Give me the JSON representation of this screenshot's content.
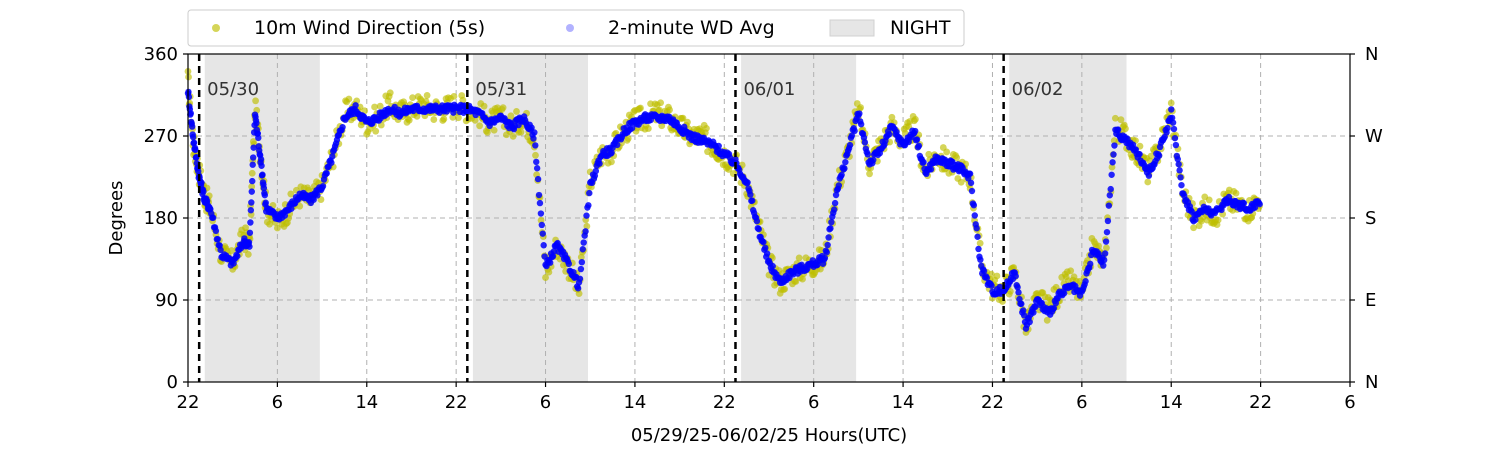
{
  "chart_data": {
    "type": "scatter",
    "xlabel": "05/29/25-06/02/25  Hours(UTC)",
    "ylabel": "Degrees",
    "ylim": [
      0,
      360
    ],
    "y_ticks": [
      0,
      90,
      180,
      270,
      360
    ],
    "y_tick_labels": [
      "0",
      "90",
      "180",
      "270",
      "360"
    ],
    "y2_ticks": [
      0,
      90,
      180,
      270,
      360
    ],
    "y2_tick_labels": [
      "N",
      "E",
      "S",
      "W",
      "N"
    ],
    "xlim_hours": [
      0,
      104
    ],
    "x_ticks_hours": [
      0,
      8,
      16,
      24,
      32,
      40,
      48,
      56,
      64,
      72,
      80,
      88,
      96,
      104
    ],
    "x_tick_labels": [
      "22",
      "6",
      "14",
      "22",
      "6",
      "14",
      "22",
      "6",
      "14",
      "22",
      "6",
      "14",
      "22",
      "6"
    ],
    "grid": true,
    "legend_placement": "top",
    "legend": {
      "entries": [
        {
          "label": "10m Wind Direction (5s)",
          "color": "#bfbf00",
          "marker": "circle"
        },
        {
          "label": "2-minute WD Avg",
          "color": "#0000ff",
          "marker": "circle"
        },
        {
          "label": "NIGHT",
          "color": "#e6e6e6",
          "marker": "patch"
        }
      ]
    },
    "day_markers": [
      {
        "hour": 1,
        "label": "05/30"
      },
      {
        "hour": 25,
        "label": "05/31"
      },
      {
        "hour": 49,
        "label": "06/01"
      },
      {
        "hour": 73,
        "label": "06/02"
      }
    ],
    "night_spans_hours": [
      [
        1.5,
        11.8
      ],
      [
        25.5,
        35.8
      ],
      [
        49.5,
        59.8
      ],
      [
        73.5,
        84.0
      ]
    ],
    "series": [
      {
        "name": "10m Wind Direction (5s)",
        "color": "#bfbf00",
        "x_hours": [
          0,
          0.5,
          1,
          1.5,
          2,
          3,
          4,
          5,
          5.5,
          6,
          6.5,
          7,
          8,
          9,
          10,
          11,
          12,
          13,
          14,
          15,
          16,
          17,
          18,
          19,
          20,
          21,
          22,
          23,
          24,
          25,
          26,
          27,
          28,
          29,
          30,
          31,
          32,
          33,
          34,
          35,
          36,
          37,
          38,
          39,
          40,
          41,
          42,
          43,
          44,
          45,
          46,
          47,
          48,
          49,
          50,
          51,
          52,
          53,
          54,
          55,
          56,
          57,
          58,
          59,
          60,
          61,
          62,
          63,
          64,
          65,
          66,
          67,
          68,
          69,
          70,
          71,
          72,
          73,
          74,
          75,
          76,
          77,
          78,
          79,
          80,
          81,
          82,
          83,
          84,
          85,
          86,
          87,
          88,
          89,
          90,
          91,
          92,
          93,
          94,
          95,
          96
        ],
        "values": [
          330,
          260,
          230,
          205,
          190,
          140,
          130,
          160,
          150,
          300,
          250,
          190,
          175,
          190,
          205,
          200,
          215,
          250,
          295,
          300,
          285,
          290,
          305,
          295,
          300,
          305,
          300,
          300,
          305,
          300,
          295,
          285,
          290,
          280,
          290,
          270,
          120,
          150,
          130,
          100,
          220,
          250,
          255,
          275,
          285,
          290,
          295,
          290,
          280,
          270,
          270,
          260,
          250,
          240,
          220,
          175,
          130,
          110,
          120,
          125,
          130,
          135,
          210,
          250,
          300,
          240,
          260,
          280,
          265,
          280,
          230,
          250,
          240,
          235,
          225,
          130,
          105,
          100,
          120,
          60,
          90,
          80,
          100,
          110,
          95,
          150,
          130,
          280,
          270,
          250,
          230,
          260,
          300,
          210,
          180,
          190,
          185,
          200,
          195,
          190,
          205
        ]
      },
      {
        "name": "2-minute WD Avg",
        "color": "#0000ff",
        "x_hours": [
          0,
          0.5,
          1,
          1.5,
          2,
          3,
          4,
          5,
          5.5,
          6,
          6.5,
          7,
          8,
          9,
          10,
          11,
          12,
          13,
          14,
          15,
          16,
          17,
          18,
          19,
          20,
          21,
          22,
          23,
          24,
          25,
          26,
          27,
          28,
          29,
          30,
          31,
          32,
          33,
          34,
          35,
          36,
          37,
          38,
          39,
          40,
          41,
          42,
          43,
          44,
          45,
          46,
          47,
          48,
          49,
          50,
          51,
          52,
          53,
          54,
          55,
          56,
          57,
          58,
          59,
          60,
          61,
          62,
          63,
          64,
          65,
          66,
          67,
          68,
          69,
          70,
          71,
          72,
          73,
          74,
          75,
          76,
          77,
          78,
          79,
          80,
          81,
          82,
          83,
          84,
          85,
          86,
          87,
          88,
          89,
          90,
          91,
          92,
          93,
          94,
          95,
          96
        ],
        "values": [
          320,
          265,
          225,
          200,
          190,
          140,
          130,
          155,
          150,
          295,
          245,
          190,
          180,
          190,
          205,
          200,
          215,
          250,
          290,
          300,
          285,
          290,
          300,
          295,
          300,
          300,
          300,
          300,
          300,
          300,
          295,
          285,
          290,
          280,
          290,
          270,
          125,
          150,
          130,
          105,
          215,
          250,
          255,
          275,
          285,
          290,
          290,
          290,
          280,
          270,
          265,
          260,
          250,
          240,
          220,
          170,
          130,
          110,
          120,
          125,
          130,
          135,
          205,
          250,
          295,
          240,
          255,
          280,
          260,
          275,
          230,
          245,
          240,
          235,
          225,
          125,
          100,
          100,
          120,
          60,
          90,
          75,
          95,
          105,
          95,
          145,
          130,
          275,
          265,
          250,
          230,
          255,
          295,
          210,
          180,
          190,
          185,
          200,
          195,
          190,
          200
        ]
      }
    ]
  }
}
